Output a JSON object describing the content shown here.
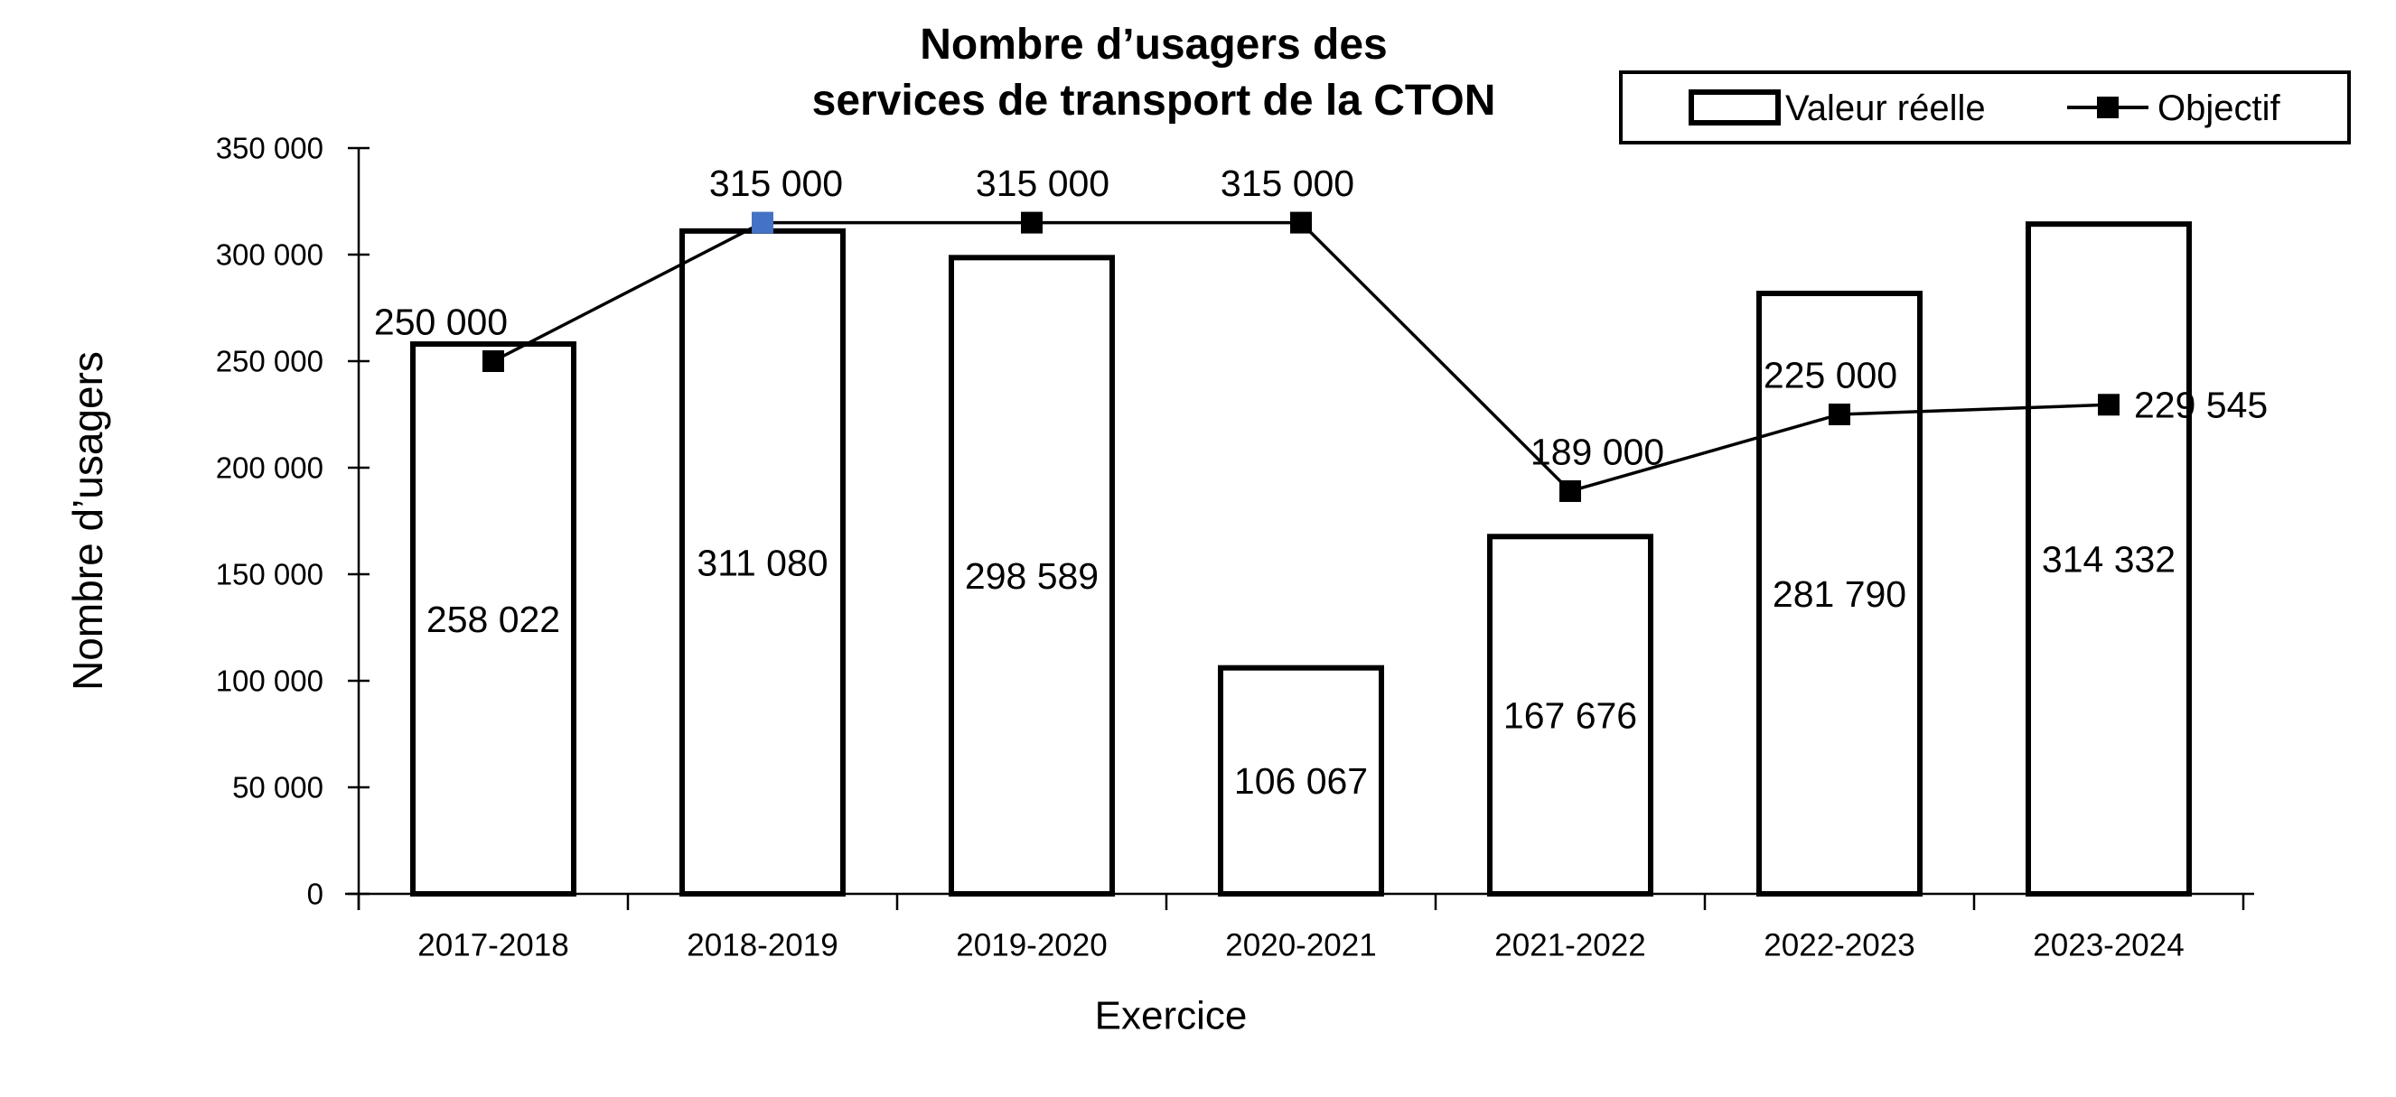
{
  "chart_data": {
    "type": "bar",
    "title_lines": [
      "Nombre d’usagers des",
      "services de transport de la CTON"
    ],
    "xlabel": "Exercice",
    "ylabel": "Nombre d’usagers",
    "categories": [
      "2017-2018",
      "2018-2019",
      "2019-2020",
      "2020-2021",
      "2021-2022",
      "2022-2023",
      "2023-2024"
    ],
    "series": [
      {
        "name": "Valeur réelle",
        "type": "bar",
        "values": [
          258022,
          311080,
          298589,
          106067,
          167676,
          281790,
          314332
        ],
        "labels": [
          "258 022",
          "311 080",
          "298 589",
          "106 067",
          "167 676",
          "281 790",
          "314 332"
        ]
      },
      {
        "name": "Objectif",
        "type": "line",
        "values": [
          250000,
          315000,
          315000,
          315000,
          189000,
          225000,
          229545
        ],
        "labels": [
          "250 000",
          "315 000",
          "315 000",
          "315 000",
          "189 000",
          "225 000",
          "229 545"
        ],
        "marker_colors": [
          "#000000",
          "#4472C4",
          "#000000",
          "#000000",
          "#000000",
          "#000000",
          "#000000"
        ],
        "label_side": [
          "above",
          "above",
          "above",
          "above",
          "above",
          "above",
          "right"
        ],
        "label_dx": [
          -58,
          15,
          12,
          -15,
          30,
          -10,
          0
        ]
      }
    ],
    "ylim": [
      0,
      350000
    ],
    "ytick_step": 50000,
    "ytick_labels": [
      "0",
      "50 000",
      "100 000",
      "150 000",
      "200 000",
      "250 000",
      "300 000",
      "350 000"
    ],
    "grid": false,
    "legend_position": "top-right",
    "colors": {
      "background": "#FFFFFF",
      "bar_fill": "#FFFFFF",
      "stroke": "#000000",
      "selected_marker": "#4472C4"
    }
  }
}
